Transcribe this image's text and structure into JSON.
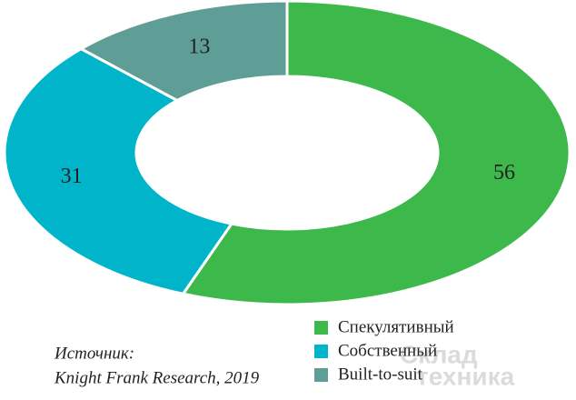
{
  "chart_data": {
    "type": "donut",
    "categories": [
      "Спекулятивный",
      "Собственный",
      "Built-to-suit"
    ],
    "values": [
      56,
      31,
      13
    ],
    "colors": [
      "#3cb94a",
      "#00b5c9",
      "#5e9e96"
    ],
    "source": [
      "Источник:",
      "Knight Frank Research, 2019"
    ],
    "watermark": [
      "Склад",
      "техника"
    ]
  }
}
